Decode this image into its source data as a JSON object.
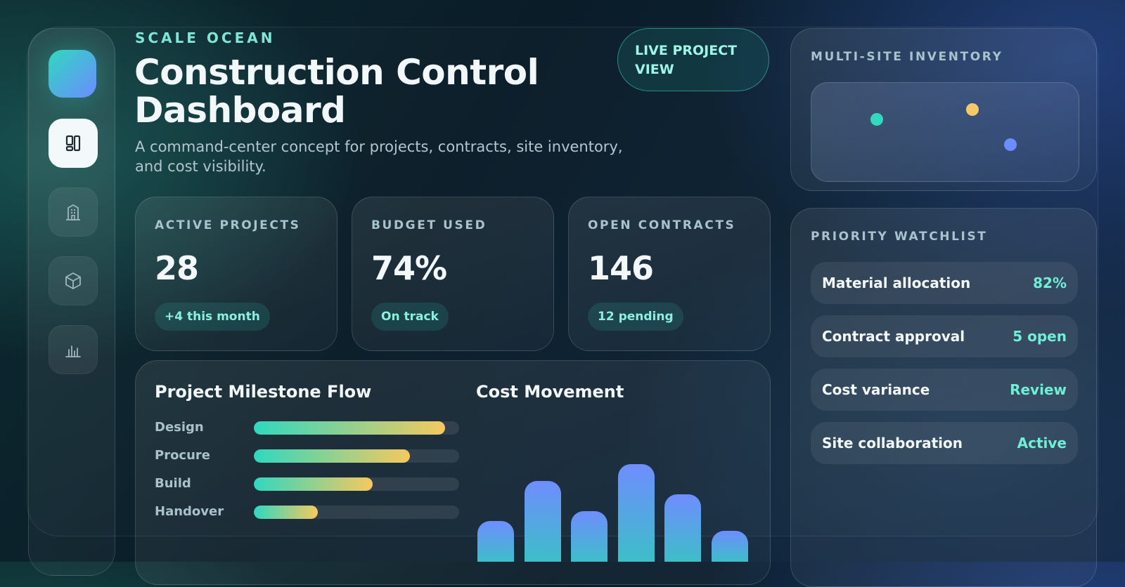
{
  "brand": "SCALE OCEAN",
  "title": "Construction Control Dashboard",
  "subtitle": "A command-center concept for projects, contracts, site inventory, and cost visibility.",
  "live_pill": "LIVE PROJECT VIEW",
  "sidebar": {
    "items": [
      {
        "icon": "dashboard-icon",
        "active": true
      },
      {
        "icon": "building-icon",
        "active": false
      },
      {
        "icon": "box-icon",
        "active": false
      },
      {
        "icon": "bar-chart-icon",
        "active": false
      }
    ]
  },
  "stats": [
    {
      "label": "ACTIVE PROJECTS",
      "value": "28",
      "chip": "+4 this month"
    },
    {
      "label": "BUDGET USED",
      "value": "74%",
      "chip": "On track"
    },
    {
      "label": "OPEN CONTRACTS",
      "value": "146",
      "chip": "12 pending"
    }
  ],
  "milestones": {
    "title": "Project Milestone Flow",
    "items": [
      {
        "label": "Design",
        "progress": 0.93
      },
      {
        "label": "Procure",
        "progress": 0.76
      },
      {
        "label": "Build",
        "progress": 0.58
      },
      {
        "label": "Handover",
        "progress": 0.31
      }
    ]
  },
  "cost_movement": {
    "title": "Cost Movement"
  },
  "chart_data": {
    "type": "bar",
    "title": "Cost Movement",
    "categories": [
      "",
      "",
      "",
      "",
      "",
      ""
    ],
    "values": [
      58,
      115,
      72,
      139,
      96,
      44
    ],
    "ylim": [
      0,
      140
    ],
    "grid": false
  },
  "inventory": {
    "label": "MULTI-SITE INVENTORY",
    "sites": [
      {
        "color": "#33d9bf"
      },
      {
        "color": "#f5c86a"
      },
      {
        "color": "#6d8cff"
      }
    ]
  },
  "watchlist": {
    "label": "PRIORITY WATCHLIST",
    "items": [
      {
        "name": "Material allocation",
        "value": "82%"
      },
      {
        "name": "Contract approval",
        "value": "5 open"
      },
      {
        "name": "Cost variance",
        "value": "Review"
      },
      {
        "name": "Site collaboration",
        "value": "Active"
      }
    ]
  },
  "colors": {
    "accent": "#2fd8c0",
    "accent_warm": "#f5c95e",
    "accent_blue": "#6b8cff",
    "text_accent": "#7fe6d6"
  }
}
